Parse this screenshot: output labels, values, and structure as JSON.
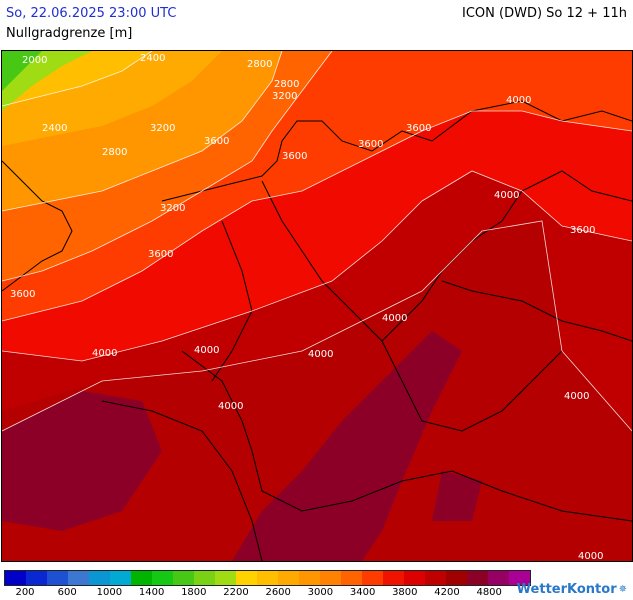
{
  "header": {
    "datetime": "So, 22.06.2025 23:00 UTC",
    "model": "ICON (DWD) So 12 + 11h",
    "parameter": "Nullgradgrenze [m]"
  },
  "legend": {
    "colors": [
      "#0000c8",
      "#0a28d2",
      "#1e50d2",
      "#3c78d2",
      "#0a96d2",
      "#00aad2",
      "#00b400",
      "#14c814",
      "#46c814",
      "#7ad214",
      "#a0dc14",
      "#ffd200",
      "#ffbe00",
      "#ffaa00",
      "#ff9600",
      "#ff8200",
      "#ff6400",
      "#ff3c00",
      "#f01400",
      "#dc0000",
      "#be0000",
      "#a00000",
      "#8c0028",
      "#960064",
      "#aa0096"
    ],
    "tick_labels": [
      "200",
      "600",
      "1000",
      "1400",
      "1800",
      "2200",
      "2600",
      "3000",
      "3400",
      "3800",
      "4200",
      "4800"
    ]
  },
  "contour_labels": [
    "2000",
    "2400",
    "2800",
    "2800",
    "3200",
    "2400",
    "2800",
    "3200",
    "3600",
    "3600",
    "3600",
    "3600",
    "4000",
    "3200",
    "3600",
    "3600",
    "3600",
    "4000",
    "4000",
    "4000",
    "4000",
    "4000",
    "4000",
    "4000",
    "4000",
    "4000"
  ],
  "brand": {
    "name": "WetterKontor",
    "icon": "raindrops-icon"
  }
}
